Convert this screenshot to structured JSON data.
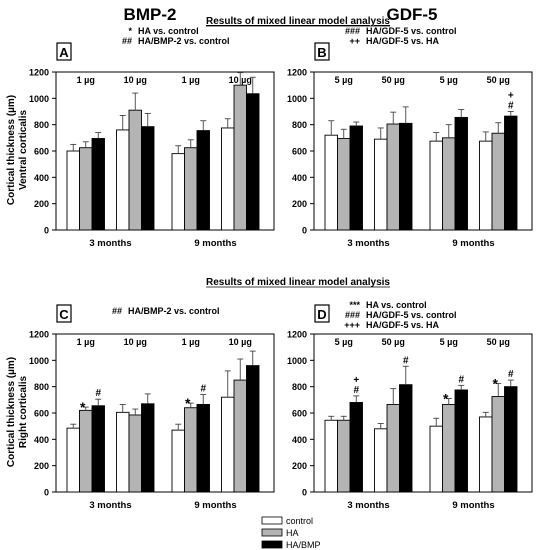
{
  "headings": {
    "left_column": "BMP-2",
    "right_column": "GDF-5",
    "analysis_top": "Results of mixed linear model analysis",
    "analysis_bottom": "Results of mixed linear model analysis"
  },
  "y_labels": {
    "top_line1": "Cortical thickness (µm)",
    "top_line2": "Ventral corticalis",
    "bottom_line1": "Cortical thickness (µm)",
    "bottom_line2": "Right corticalis"
  },
  "legend": [
    {
      "label": "control",
      "color": "#ffffff"
    },
    {
      "label": "HA",
      "color": "#b4b4b4"
    },
    {
      "label": "HA/BMP",
      "color": "#000000"
    }
  ],
  "colors": {
    "control": "#ffffff",
    "ha": "#b4b4b4",
    "treatment": "#000000"
  },
  "chart_data": [
    {
      "type": "bar",
      "panel": "A",
      "stats": [
        {
          "sym": "*",
          "text": "HA vs. control"
        },
        {
          "sym": "##",
          "text": "HA/BMP-2 vs. control"
        }
      ],
      "ylim": [
        0,
        1200
      ],
      "yticks": [
        0,
        200,
        400,
        600,
        800,
        1000,
        1200
      ],
      "x_group_labels": [
        "3 months",
        "9 months"
      ],
      "dose_labels": [
        "1 µg",
        "10 µg",
        "1 µg",
        "10 µg"
      ],
      "groups": [
        {
          "values": [
            600,
            625,
            695
          ],
          "errors": [
            50,
            45,
            45
          ],
          "marks": [
            "",
            "",
            ""
          ]
        },
        {
          "values": [
            760,
            910,
            785
          ],
          "errors": [
            110,
            130,
            100
          ],
          "marks": [
            "",
            "",
            ""
          ]
        },
        {
          "values": [
            580,
            625,
            755
          ],
          "errors": [
            60,
            60,
            75
          ],
          "marks": [
            "",
            "",
            ""
          ]
        },
        {
          "values": [
            775,
            1100,
            1035
          ],
          "errors": [
            70,
            95,
            125
          ],
          "marks": [
            "",
            "",
            ""
          ]
        }
      ]
    },
    {
      "type": "bar",
      "panel": "B",
      "stats": [
        {
          "sym": "###",
          "text": "HA/GDF-5 vs. control"
        },
        {
          "sym": "++",
          "text": "HA/GDF-5 vs. HA"
        }
      ],
      "ylim": [
        0,
        1200
      ],
      "yticks": [
        0,
        200,
        400,
        600,
        800,
        1000,
        1200
      ],
      "x_group_labels": [
        "3 months",
        "9 months"
      ],
      "dose_labels": [
        "5 µg",
        "50 µg",
        "5 µg",
        "50 µg"
      ],
      "groups": [
        {
          "values": [
            720,
            695,
            790
          ],
          "errors": [
            110,
            70,
            30
          ],
          "marks": [
            "",
            "",
            ""
          ]
        },
        {
          "values": [
            690,
            805,
            810
          ],
          "errors": [
            85,
            90,
            125
          ],
          "marks": [
            "",
            "",
            ""
          ]
        },
        {
          "values": [
            675,
            700,
            855
          ],
          "errors": [
            65,
            100,
            60
          ],
          "marks": [
            "",
            "",
            ""
          ]
        },
        {
          "values": [
            675,
            735,
            865
          ],
          "errors": [
            70,
            80,
            35
          ],
          "marks": [
            "",
            "",
            "+\n#"
          ]
        }
      ]
    },
    {
      "type": "bar",
      "panel": "C",
      "stats": [
        {
          "sym": "##",
          "text": "HA/BMP-2 vs. control"
        }
      ],
      "ylim": [
        0,
        1200
      ],
      "yticks": [
        0,
        200,
        400,
        600,
        800,
        1000,
        1200
      ],
      "x_group_labels": [
        "3 months",
        "9 months"
      ],
      "dose_labels": [
        "1 µg",
        "10 µg",
        "1 µg",
        "10 µg"
      ],
      "groups": [
        {
          "values": [
            485,
            620,
            655
          ],
          "errors": [
            30,
            25,
            50
          ],
          "marks": [
            "",
            "*",
            "#"
          ]
        },
        {
          "values": [
            605,
            585,
            670
          ],
          "errors": [
            60,
            45,
            75
          ],
          "marks": [
            "",
            "",
            ""
          ]
        },
        {
          "values": [
            470,
            640,
            665
          ],
          "errors": [
            45,
            35,
            75
          ],
          "marks": [
            "",
            "*",
            "#"
          ]
        },
        {
          "values": [
            720,
            850,
            960
          ],
          "errors": [
            200,
            160,
            110
          ],
          "marks": [
            "",
            "",
            ""
          ]
        }
      ]
    },
    {
      "type": "bar",
      "panel": "D",
      "stats": [
        {
          "sym": "***",
          "text": "HA vs. control"
        },
        {
          "sym": "###",
          "text": "HA/GDF-5 vs. control"
        },
        {
          "sym": "+++",
          "text": "HA/GDF-5 vs. HA"
        }
      ],
      "ylim": [
        0,
        1200
      ],
      "yticks": [
        0,
        200,
        400,
        600,
        800,
        1000,
        1200
      ],
      "x_group_labels": [
        "3 months",
        "9 months"
      ],
      "dose_labels": [
        "5 µg",
        "50 µg",
        "5 µg",
        "50 µg"
      ],
      "groups": [
        {
          "values": [
            545,
            545,
            680
          ],
          "errors": [
            30,
            30,
            50
          ],
          "marks": [
            "",
            "",
            "+\n#"
          ]
        },
        {
          "values": [
            480,
            665,
            815
          ],
          "errors": [
            40,
            120,
            140
          ],
          "marks": [
            "",
            "",
            "#"
          ]
        },
        {
          "values": [
            500,
            665,
            775
          ],
          "errors": [
            60,
            45,
            35
          ],
          "marks": [
            "",
            "*",
            "#"
          ]
        },
        {
          "values": [
            570,
            725,
            800
          ],
          "errors": [
            35,
            100,
            50
          ],
          "marks": [
            "",
            "*",
            "#"
          ]
        }
      ]
    }
  ]
}
